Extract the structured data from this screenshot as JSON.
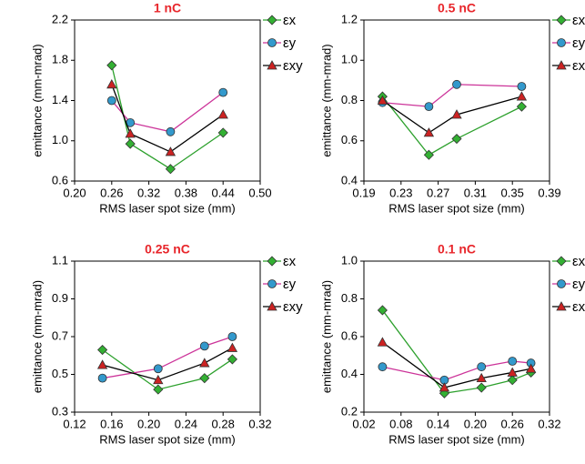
{
  "chart_data": [
    {
      "type": "line",
      "title": "1 nC",
      "x_label": "RMS laser spot size (mm)",
      "y_label": "emittance (mm-mrad)",
      "x": [
        0.26,
        0.29,
        0.355,
        0.44
      ],
      "xlim": [
        0.2,
        0.5
      ],
      "xticks": [
        {
          "value": 0.2,
          "label": "0.20"
        },
        0.26,
        0.32,
        0.38,
        0.44,
        {
          "value": 0.5,
          "label": "0.50"
        }
      ],
      "ylim": [
        0.6,
        2.2
      ],
      "yticks": [
        0.6,
        {
          "value": 1,
          "label": "1.0"
        },
        1.4,
        1.8,
        2.2
      ],
      "series": [
        {
          "name": "εx",
          "color": "#2ca02c",
          "marker": "diamond",
          "marker_color": "#33b033",
          "values": [
            1.75,
            0.97,
            0.72,
            1.08
          ]
        },
        {
          "name": "εy",
          "color": "#cc3399",
          "marker": "circle",
          "marker_color": "#3399cc",
          "values": [
            1.4,
            1.18,
            1.09,
            1.48
          ]
        },
        {
          "name": "εxy",
          "color": "#000000",
          "marker": "triangle",
          "marker_color": "#cc2222",
          "values": [
            1.56,
            1.07,
            0.89,
            1.26
          ]
        }
      ]
    },
    {
      "type": "line",
      "title": "0.5 nC",
      "x_label": "RMS laser spot size (mm)",
      "y_label": "emittance (mm-mrad)",
      "x": [
        0.21,
        0.26,
        0.29,
        0.36
      ],
      "xlim": [
        0.19,
        0.39
      ],
      "xticks": [
        0.19,
        0.23,
        0.27,
        0.31,
        0.35,
        0.39
      ],
      "ylim": [
        0.4,
        1.2
      ],
      "yticks": [
        0.4,
        0.6,
        0.8,
        {
          "value": 1,
          "label": "1.0"
        },
        1.2
      ],
      "series": [
        {
          "name": "εx",
          "color": "#2ca02c",
          "marker": "diamond",
          "marker_color": "#33b033",
          "values": [
            0.82,
            0.53,
            0.61,
            0.77
          ]
        },
        {
          "name": "εy",
          "color": "#cc3399",
          "marker": "circle",
          "marker_color": "#3399cc",
          "values": [
            0.79,
            0.77,
            0.88,
            0.87
          ]
        },
        {
          "name": "εxy",
          "color": "#000000",
          "marker": "triangle",
          "marker_color": "#cc2222",
          "values": [
            0.8,
            0.64,
            0.73,
            0.82
          ]
        }
      ]
    },
    {
      "type": "line",
      "title": "0.25 nC",
      "x_label": "RMS laser spot size (mm)",
      "y_label": "emittance (mm-mrad)",
      "x": [
        0.15,
        0.21,
        0.26,
        0.29
      ],
      "xlim": [
        0.12,
        0.32
      ],
      "xticks": [
        0.12,
        0.16,
        {
          "value": 0.2,
          "label": "0.20"
        },
        0.24,
        0.28,
        0.32
      ],
      "ylim": [
        0.3,
        1.1
      ],
      "yticks": [
        0.3,
        0.5,
        0.7,
        0.9,
        1.1
      ],
      "series": [
        {
          "name": "εx",
          "color": "#2ca02c",
          "marker": "diamond",
          "marker_color": "#33b033",
          "values": [
            0.63,
            0.42,
            0.48,
            0.58
          ]
        },
        {
          "name": "εy",
          "color": "#cc3399",
          "marker": "circle",
          "marker_color": "#3399cc",
          "values": [
            0.48,
            0.53,
            0.65,
            0.7
          ]
        },
        {
          "name": "εxy",
          "color": "#000000",
          "marker": "triangle",
          "marker_color": "#cc2222",
          "values": [
            0.55,
            0.47,
            0.56,
            0.64
          ]
        }
      ]
    },
    {
      "type": "line",
      "title": "0.1 nC",
      "x_label": "RMS laser spot size (mm)",
      "y_label": "emittance (mm-mrad)",
      "x": [
        0.05,
        0.15,
        0.21,
        0.26,
        0.29
      ],
      "xlim": [
        0.02,
        0.32
      ],
      "xticks": [
        0.02,
        0.08,
        0.14,
        {
          "value": 0.2,
          "label": "0.20"
        },
        0.26,
        0.32
      ],
      "ylim": [
        0.2,
        1.0
      ],
      "yticks": [
        0.2,
        0.4,
        0.6,
        0.8,
        {
          "value": 1,
          "label": "1.0"
        }
      ],
      "series": [
        {
          "name": "εx",
          "color": "#2ca02c",
          "marker": "diamond",
          "marker_color": "#33b033",
          "values": [
            0.74,
            0.3,
            0.33,
            0.37,
            0.41
          ]
        },
        {
          "name": "εy",
          "color": "#cc3399",
          "marker": "circle",
          "marker_color": "#3399cc",
          "values": [
            0.44,
            0.37,
            0.44,
            0.47,
            0.46
          ]
        },
        {
          "name": "εxy",
          "color": "#000000",
          "marker": "triangle",
          "marker_color": "#cc2222",
          "values": [
            0.57,
            0.33,
            0.38,
            0.41,
            0.43
          ]
        }
      ]
    }
  ]
}
